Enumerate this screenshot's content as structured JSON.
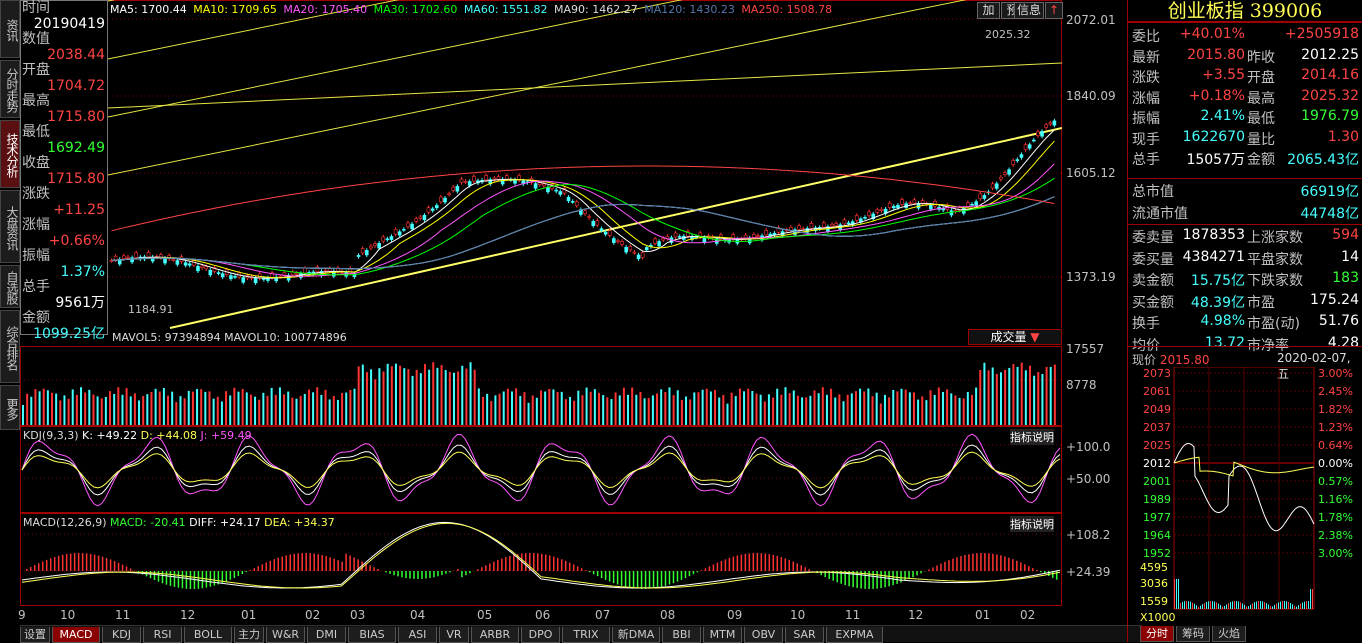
{
  "side_tabs": [
    "资讯",
    "分时走势",
    "技术分析",
    "大盘资讯",
    "自选股",
    "综合排名",
    "更多"
  ],
  "top_buttons": [
    "加",
    "预",
    "信息"
  ],
  "close_icon": "↑",
  "tooltip": {
    "rows": [
      {
        "label": "时间",
        "value": "20190419",
        "color": "#ffffff"
      },
      {
        "label": "数值",
        "value": "2038.44",
        "color": "#ff4444"
      },
      {
        "label": "开盘",
        "value": "1704.72",
        "color": "#ff4444"
      },
      {
        "label": "最高",
        "value": "1715.80",
        "color": "#ff4444"
      },
      {
        "label": "最低",
        "value": "1692.49",
        "color": "#33ff33"
      },
      {
        "label": "收盘",
        "value": "1715.80",
        "color": "#ff4444"
      },
      {
        "label": "涨跌",
        "value": "+11.25",
        "color": "#ff4444"
      },
      {
        "label": "涨幅",
        "value": "+0.66%",
        "color": "#ff4444"
      },
      {
        "label": "振幅",
        "value": "1.37%",
        "color": "#44ffff"
      },
      {
        "label": "总手",
        "value": "9561万",
        "color": "#ffffff"
      },
      {
        "label": "金额",
        "value": "1099.25亿",
        "color": "#44ffff"
      }
    ]
  },
  "ma_line": {
    "items": [
      {
        "text": "MA5: 1700.44",
        "color": "#ffffff"
      },
      {
        "text": "MA10: 1709.65",
        "color": "#ffff00"
      },
      {
        "text": "MA20: 1705.40",
        "color": "#ff55ff"
      },
      {
        "text": "MA30: 1702.60",
        "color": "#00ff00"
      },
      {
        "text": "MA60: 1551.82",
        "color": "#44ffff"
      },
      {
        "text": "MA90: 1462.27",
        "color": "#dddddd"
      },
      {
        "text": "MA120: 1430.23",
        "color": "#5577aa"
      },
      {
        "text": "MA250: 1508.78",
        "color": "#ff4444"
      }
    ]
  },
  "price_axis": [
    "2072.01",
    "1840.09",
    "1605.12",
    "1373.19"
  ],
  "price_annotations": {
    "high": "2025.32",
    "low": "1184.91"
  },
  "volume": {
    "label": "MAVOL5: 97394894  MAVOL10: 100774896",
    "dropdown": "成交量",
    "axis": [
      "17557",
      "8778"
    ]
  },
  "kdj": {
    "label": "KDJ(9,3,3)",
    "values": [
      {
        "text": "K: +49.22",
        "color": "#ffffff"
      },
      {
        "text": "D: +44.08",
        "color": "#ffff55"
      },
      {
        "text": "J: +59.49",
        "color": "#ff55ff"
      }
    ],
    "help": "指标说明",
    "axis": [
      "+100.0",
      "+50.00"
    ]
  },
  "macd": {
    "label": "MACD(12,26,9)",
    "values": [
      {
        "text": "MACD: -20.41",
        "color": "#33ff33"
      },
      {
        "text": "DIFF: +24.17",
        "color": "#ffffff"
      },
      {
        "text": "DEA: +34.37",
        "color": "#ffff55"
      }
    ],
    "help": "指标说明",
    "axis": [
      "+108.2",
      "+24.39"
    ]
  },
  "months": [
    "9",
    "10",
    "11",
    "12",
    "01",
    "02",
    "03",
    "04",
    "05",
    "06",
    "07",
    "08",
    "09",
    "10",
    "11",
    "12",
    "01",
    "02"
  ],
  "bottom_tabs": [
    "设置",
    "MACD",
    "KDJ",
    "RSI",
    "BOLL",
    "主力",
    "W&R",
    "DMI",
    "BIAS",
    "ASI",
    "VR",
    "ARBR",
    "DPO",
    "TRIX",
    "新DMA",
    "BBI",
    "MTM",
    "OBV",
    "SAR",
    "EXPMA"
  ],
  "active_bottom_tab": "MACD",
  "quote": {
    "title": "创业板指 399006",
    "rows": [
      {
        "l1": "委比",
        "v1": "+40.01%",
        "c1": "#ff4444",
        "l2": "",
        "v2": "+2505918",
        "c2": "#ff4444"
      },
      {
        "l1": "最新",
        "v1": "2015.80",
        "c1": "#ff4444",
        "l2": "昨收",
        "v2": "2012.25",
        "c2": "#ffffff"
      },
      {
        "l1": "涨跌",
        "v1": "+3.55",
        "c1": "#ff4444",
        "l2": "开盘",
        "v2": "2014.16",
        "c2": "#ff4444"
      },
      {
        "l1": "涨幅",
        "v1": "+0.18%",
        "c1": "#ff4444",
        "l2": "最高",
        "v2": "2025.32",
        "c2": "#ff4444"
      },
      {
        "l1": "振幅",
        "v1": "2.41%",
        "c1": "#44ffff",
        "l2": "最低",
        "v2": "1976.79",
        "c2": "#33ff33"
      },
      {
        "l1": "现手",
        "v1": "1622670",
        "c1": "#44ffff",
        "l2": "量比",
        "v2": "1.30",
        "c2": "#ff4444"
      },
      {
        "l1": "总手",
        "v1": "15057万",
        "c1": "#ffffff",
        "l2": "金额",
        "v2": "2065.43亿",
        "c2": "#44ffff"
      }
    ],
    "cap_rows": [
      {
        "label": "总市值",
        "value": "66919亿"
      },
      {
        "label": "流通市值",
        "value": "44748亿"
      }
    ],
    "breadth_rows": [
      {
        "l1": "委卖量",
        "v1": "1878353",
        "c1": "#ffffff",
        "l2": "上涨家数",
        "v2": "594",
        "c2": "#ff4444"
      },
      {
        "l1": "委买量",
        "v1": "4384271",
        "c1": "#ffffff",
        "l2": "平盘家数",
        "v2": "14",
        "c2": "#ffffff"
      },
      {
        "l1": "卖金额",
        "v1": "15.75亿",
        "c1": "#44ffff",
        "l2": "下跌家数",
        "v2": "183",
        "c2": "#33ff33"
      },
      {
        "l1": "买金额",
        "v1": "48.39亿",
        "c1": "#44ffff",
        "l2": "市盈",
        "v2": "175.24",
        "c2": "#ffffff"
      },
      {
        "l1": "换手",
        "v1": "4.98%",
        "c1": "#44ffff",
        "l2": "市盈(动)",
        "v2": "51.76",
        "c2": "#ffffff"
      },
      {
        "l1": "均价",
        "v1": "13.72",
        "c1": "#44ffff",
        "l2": "市净率",
        "v2": "4.28",
        "c2": "#ffffff"
      }
    ]
  },
  "mini": {
    "price_label": "现价",
    "price": "2015.80",
    "date": "2020-02-07,五",
    "left_axis": [
      "2073",
      "2061",
      "2049",
      "2037",
      "2025",
      "2012",
      "2001",
      "1989",
      "1977",
      "1964",
      "1952"
    ],
    "right_axis": [
      "3.00%",
      "2.45%",
      "1.82%",
      "1.23%",
      "0.64%",
      "0.00%",
      "0.57%",
      "1.16%",
      "1.78%",
      "2.38%",
      "3.00%"
    ],
    "vol_axis": [
      "4595",
      "3036",
      "1559",
      "X1000"
    ],
    "tabs": [
      "分时",
      "筹码",
      "火焰"
    ],
    "active_tab": "分时"
  },
  "colors": {
    "grid": "#a00000",
    "up": "#ff3333",
    "down": "#44ffff",
    "bg": "#000000"
  }
}
